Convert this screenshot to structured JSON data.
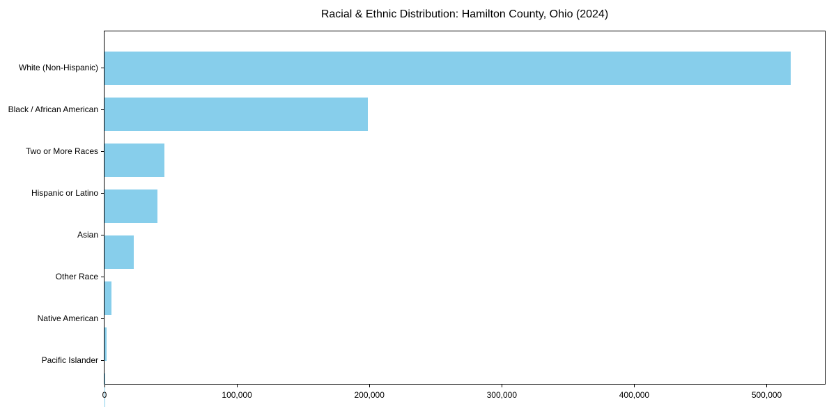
{
  "title": "Racial & Ethnic Distribution: Hamilton County, Ohio (2024)",
  "colors": {
    "bar": "#87CEEB",
    "axis": "#000000",
    "text": "#000000",
    "background": "#ffffff"
  },
  "chart_data": {
    "type": "bar",
    "orientation": "horizontal",
    "title": "Racial & Ethnic Distribution: Hamilton County, Ohio (2024)",
    "categories": [
      "White (Non-Hispanic)",
      "Black / African American",
      "Two or More Races",
      "Hispanic or Latino",
      "Asian",
      "Other Race",
      "Native American",
      "Pacific Islander"
    ],
    "values": [
      518000,
      199000,
      45000,
      40000,
      22000,
      5200,
      1400,
      400
    ],
    "bar_color": "#87CEEB",
    "xlabel": "",
    "ylabel": "",
    "xlim": [
      0,
      543900
    ],
    "xticks": [
      0,
      100000,
      200000,
      300000,
      400000,
      500000
    ],
    "xtick_labels": [
      "0",
      "100,000",
      "200,000",
      "300,000",
      "400,000",
      "500,000"
    ],
    "grid": false,
    "legend": null
  }
}
